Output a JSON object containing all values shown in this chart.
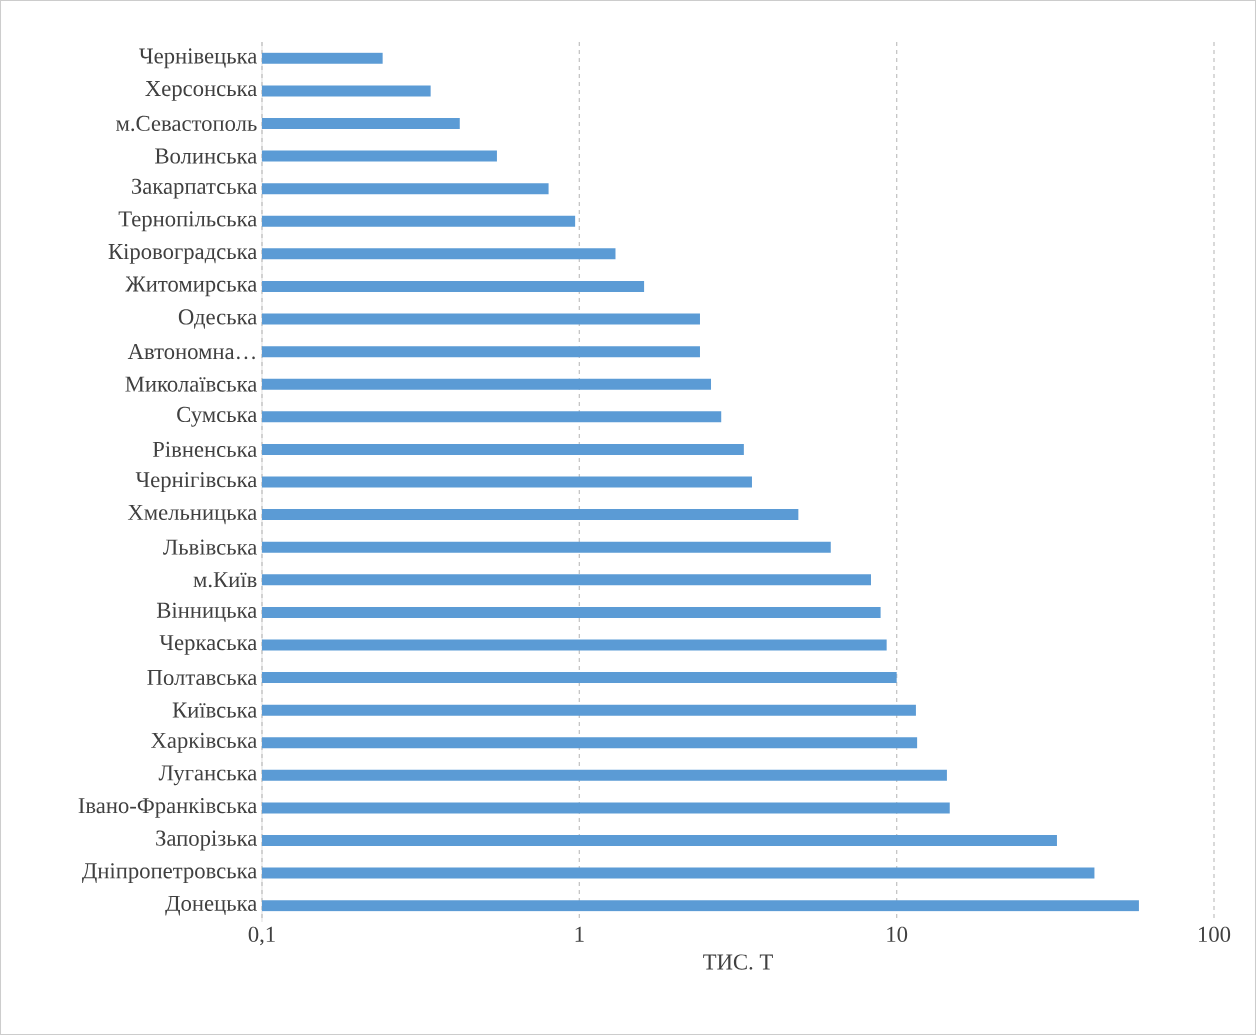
{
  "chart_data": {
    "type": "bar",
    "orientation": "horizontal",
    "log": "x",
    "grid": "x",
    "xlabel": "ТИС. Т",
    "categories": [
      "Чернівецька",
      "Херсонська",
      "м.Севастополь",
      "Волинська",
      "Закарпатська",
      "Тернопільська",
      "Кіровоградська",
      "Житомирська",
      "Одеська",
      "Автономна…",
      "Миколаївська",
      "Сумська",
      "Рівненська",
      "Чернігівська",
      "Хмельницька",
      "Львівська",
      "м.Київ",
      "Вінницька",
      "Черкаська",
      "Полтавська",
      "Київська",
      "Харківська",
      "Луганська",
      "Івано-Франківська",
      "Запорізька",
      "Дніпропетровська",
      "Донецька"
    ],
    "values": [
      0.24,
      0.34,
      0.42,
      0.55,
      0.8,
      0.97,
      1.3,
      1.6,
      2.4,
      2.4,
      2.6,
      2.8,
      3.3,
      3.5,
      4.9,
      6.2,
      8.3,
      8.9,
      9.3,
      10,
      11.5,
      11.6,
      14.4,
      14.7,
      32,
      42,
      58
    ],
    "color": "#5b9bd5",
    "xlim": [
      0.1,
      100
    ],
    "xticks": [
      {
        "value": 0.1,
        "label": "0,1"
      },
      1,
      10,
      100
    ]
  }
}
